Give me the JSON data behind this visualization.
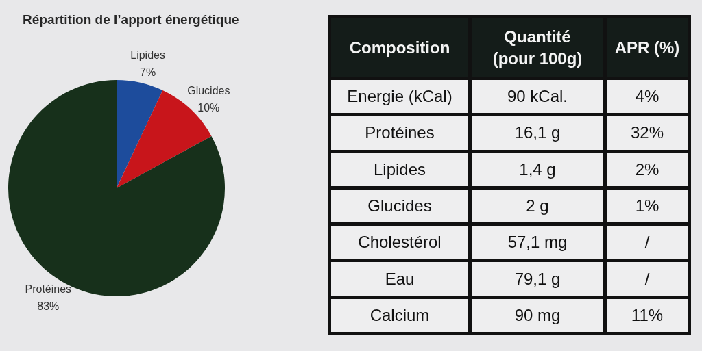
{
  "chart_data": [
    {
      "type": "pie",
      "title": "Répartition de l’apport énergétique",
      "categories": [
        "Lipides",
        "Glucides",
        "Protéines"
      ],
      "values": [
        7,
        10,
        83
      ],
      "colors": [
        "#1d4c9c",
        "#c8151b",
        "#17301b"
      ],
      "value_labels": [
        "7%",
        "10%",
        "83%"
      ]
    },
    {
      "type": "other",
      "ylabel": "Composition",
      "categories": [
        "Quantité\n(pour 100g)",
        "APR (%)"
      ],
      "y_categories": [
        "Energie (kCal)",
        "Protéines",
        "Lipides",
        "Glucides",
        "Cholestérol",
        "Eau",
        "Calcium"
      ],
      "cell_labels": [
        [
          "90 kCal.",
          "4%"
        ],
        [
          "16,1 g",
          "32%"
        ],
        [
          "1,4 g",
          "2%"
        ],
        [
          "2 g",
          "1%"
        ],
        [
          "57,1 mg",
          "/"
        ],
        [
          "79,1 g",
          "/"
        ],
        [
          "90 mg",
          "11%"
        ]
      ]
    }
  ]
}
